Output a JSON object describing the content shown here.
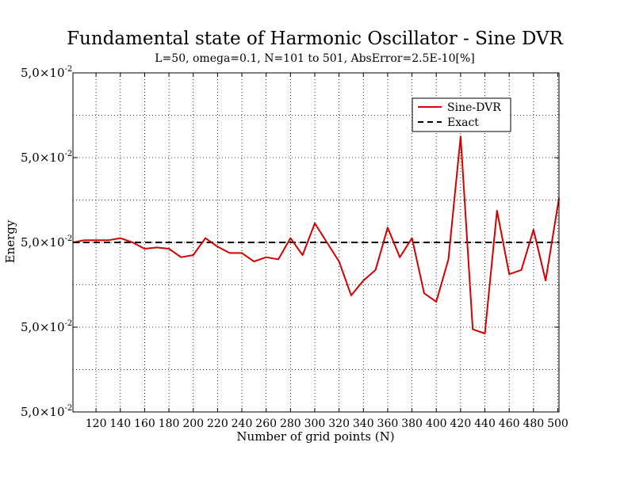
{
  "chart_data": {
    "type": "line",
    "title": "Fundamental state of Harmonic Oscillator - Sine DVR",
    "subtitle": "L=50, omega=0.1, N=101 to 501, AbsError=2.5E-10[%]",
    "xlabel": "Number of grid points (N)",
    "ylabel": "Energy",
    "xlim": [
      101,
      501
    ],
    "ylim": [
      -4,
      4
    ],
    "x_ticks": [
      120,
      140,
      160,
      180,
      200,
      220,
      240,
      260,
      280,
      300,
      320,
      340,
      360,
      380,
      400,
      420,
      440,
      460,
      480,
      500
    ],
    "y_tick_label_mantissa": "5,0×10",
    "y_tick_label_exponent": "-2",
    "y_tick_values": [
      -4,
      -2,
      0,
      2,
      4
    ],
    "grid": true,
    "legend_position": "top-right",
    "series": [
      {
        "name": "Sine-DVR",
        "color": "#d40000",
        "style": "solid",
        "x": [
          101,
          110,
          120,
          130,
          140,
          150,
          160,
          170,
          180,
          190,
          200,
          210,
          220,
          230,
          240,
          250,
          260,
          270,
          280,
          290,
          300,
          310,
          320,
          330,
          340,
          350,
          360,
          370,
          380,
          390,
          400,
          410,
          420,
          430,
          440,
          450,
          460,
          470,
          480,
          490,
          501
        ],
        "y": [
          0.0,
          0.05,
          0.05,
          0.05,
          0.1,
          0.0,
          -0.15,
          -0.12,
          -0.15,
          -0.35,
          -0.3,
          0.1,
          -0.1,
          -0.25,
          -0.25,
          -0.45,
          -0.35,
          -0.4,
          0.1,
          -0.3,
          0.45,
          0.0,
          -0.45,
          -1.25,
          -0.9,
          -0.65,
          0.35,
          -0.35,
          0.1,
          -1.2,
          -1.4,
          -0.4,
          2.5,
          -2.05,
          -2.15,
          0.75,
          -0.75,
          -0.65,
          0.3,
          -0.9,
          1.05
        ]
      },
      {
        "name": "Exact",
        "color": "#000000",
        "style": "dashed",
        "x": [
          101,
          501
        ],
        "y": [
          0.0,
          0.0
        ]
      }
    ]
  }
}
